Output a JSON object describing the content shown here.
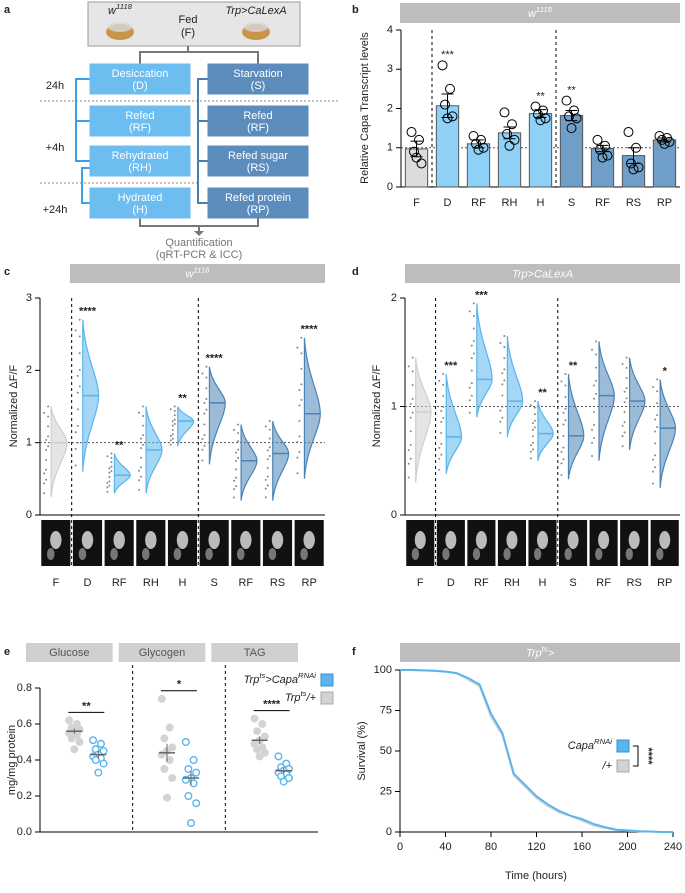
{
  "panel_labels": [
    "a",
    "b",
    "c",
    "d",
    "e",
    "f"
  ],
  "diagram": {
    "flies": [
      [
        "w",
        "1118"
      ],
      "Trp>CaLexA"
    ],
    "fed": [
      "Fed",
      "(F)"
    ],
    "left": [
      [
        "Desiccation",
        "(D)"
      ],
      [
        "Refed",
        "(RF)"
      ],
      [
        "Rehydrated",
        "(RH)"
      ],
      [
        "Hydrated",
        "(H)"
      ]
    ],
    "right": [
      [
        "Starvation",
        "(S)"
      ],
      [
        "Refed",
        "(RF)"
      ],
      [
        "Refed sugar",
        "(RS)"
      ],
      [
        "Refed protein",
        "(RP)"
      ]
    ],
    "times": [
      "24h",
      "+4h",
      "+24h"
    ],
    "output": [
      "Quantification",
      "(qRT-PCR & ICC)"
    ]
  },
  "chart_data": [
    {
      "type": "bar",
      "title": [
        "w",
        "1118"
      ],
      "y_label": "Relative Capa Transcript levels",
      "categories": [
        "F",
        "D",
        "RF",
        "RH",
        "H",
        "S",
        "RF",
        "RS",
        "RP"
      ],
      "values": [
        0.97,
        2.07,
        1.1,
        1.38,
        1.87,
        1.82,
        0.98,
        0.8,
        1.2
      ],
      "errors": [
        0.2,
        0.3,
        0.1,
        0.15,
        0.1,
        0.13,
        0.08,
        0.2,
        0.05
      ],
      "points": [
        [
          1.4,
          1.2,
          0.9,
          0.6,
          0.75
        ],
        [
          3.1,
          2.5,
          2.1,
          1.8,
          1.75
        ],
        [
          1.3,
          1.2,
          1.1,
          1.0,
          0.95
        ],
        [
          1.9,
          1.6,
          1.35,
          1.2,
          1.05
        ],
        [
          2.05,
          1.95,
          1.85,
          1.75,
          1.7
        ],
        [
          2.2,
          1.95,
          1.8,
          1.75,
          1.5
        ],
        [
          1.2,
          1.05,
          0.95,
          0.8,
          0.75
        ],
        [
          1.4,
          1.0,
          0.6,
          0.5,
          0.45
        ],
        [
          1.3,
          1.25,
          1.2,
          1.15,
          1.1
        ]
      ],
      "colors": [
        "#dcdcdc",
        "#8fd0f7",
        "#8fd0f7",
        "#8fd0f7",
        "#8fd0f7",
        "#6f9fc8",
        "#6f9fc8",
        "#6f9fc8",
        "#6f9fc8"
      ],
      "significance": [
        null,
        "***",
        null,
        null,
        "**",
        "**",
        null,
        null,
        null
      ],
      "ylim": [
        0,
        4
      ],
      "yticks": [
        0,
        1,
        2,
        3,
        4
      ],
      "reference_line": 1,
      "separators_after": [
        0,
        4
      ]
    },
    {
      "type": "violin",
      "title": [
        "w",
        "1118"
      ],
      "y_label": "Normalized ΔF/F",
      "categories": [
        "F",
        "D",
        "RF",
        "RH",
        "H",
        "S",
        "RF",
        "RS",
        "RP"
      ],
      "medians": [
        1.0,
        1.65,
        0.55,
        0.9,
        1.3,
        1.55,
        0.75,
        0.85,
        1.4
      ],
      "min": [
        0.25,
        0.6,
        0.3,
        0.3,
        0.95,
        0.7,
        0.2,
        0.2,
        0.5
      ],
      "max": [
        1.5,
        2.7,
        0.85,
        1.5,
        1.5,
        2.05,
        1.25,
        1.3,
        2.45
      ],
      "colors": [
        "#cfcfcf",
        "#5ab4ee",
        "#5ab4ee",
        "#5ab4ee",
        "#5ab4ee",
        "#4a83b5",
        "#4a83b5",
        "#4a83b5",
        "#4a83b5"
      ],
      "significance": [
        null,
        "****",
        "**",
        null,
        "**",
        "****",
        null,
        null,
        "****"
      ],
      "ylim": [
        0,
        3
      ],
      "yticks": [
        0,
        1,
        2,
        3
      ],
      "reference_line": 1,
      "separators_after": [
        0,
        4
      ]
    },
    {
      "type": "violin",
      "title": "Trp>CaLexA",
      "y_label": "Normalized ΔF/F",
      "categories": [
        "F",
        "D",
        "RF",
        "RH",
        "H",
        "S",
        "RF",
        "RS",
        "RP"
      ],
      "medians": [
        0.95,
        0.72,
        1.25,
        1.05,
        0.75,
        0.73,
        1.1,
        1.05,
        0.8
      ],
      "min": [
        0.3,
        0.38,
        0.9,
        0.72,
        0.5,
        0.33,
        0.5,
        0.6,
        0.25
      ],
      "max": [
        1.45,
        1.3,
        1.95,
        1.65,
        1.05,
        1.3,
        1.6,
        1.45,
        1.25
      ],
      "colors": [
        "#cfcfcf",
        "#5ab4ee",
        "#5ab4ee",
        "#5ab4ee",
        "#5ab4ee",
        "#4a83b5",
        "#4a83b5",
        "#4a83b5",
        "#4a83b5"
      ],
      "significance": [
        null,
        "***",
        "***",
        null,
        "**",
        "**",
        null,
        null,
        "*"
      ],
      "ylim": [
        0,
        2
      ],
      "yticks": [
        0,
        1,
        2
      ],
      "reference_line": 1,
      "separators_after": [
        0,
        4
      ]
    },
    {
      "type": "strip",
      "categories": [
        "Glucose",
        "Glycogen",
        "TAG"
      ],
      "y_label": "mg/mg protein",
      "series": [
        {
          "name": [
            "Trp",
            "ts",
            ">Capa",
            "RNAi"
          ],
          "color": "#5ab4ee",
          "points": [
            [
              0.51,
              0.49,
              0.46,
              0.45,
              0.43,
              0.42,
              0.41,
              0.4,
              0.38,
              0.33
            ],
            [
              0.5,
              0.4,
              0.35,
              0.33,
              0.3,
              0.29,
              0.27,
              0.2,
              0.16,
              0.05
            ],
            [
              0.42,
              0.38,
              0.36,
              0.35,
              0.34,
              0.33,
              0.32,
              0.31,
              0.3,
              0.28
            ]
          ],
          "means": [
            0.43,
            0.3,
            0.34
          ],
          "errors": [
            0.02,
            0.04,
            0.015
          ]
        },
        {
          "name": [
            "Trp",
            "ts",
            "/+"
          ],
          "color": "#d3d3d3",
          "points": [
            [
              0.62,
              0.6,
              0.58,
              0.57,
              0.56,
              0.55,
              0.54,
              0.52,
              0.5,
              0.46
            ],
            [
              0.74,
              0.58,
              0.52,
              0.47,
              0.45,
              0.43,
              0.4,
              0.35,
              0.3,
              0.19
            ],
            [
              0.63,
              0.6,
              0.56,
              0.53,
              0.51,
              0.49,
              0.47,
              0.46,
              0.44,
              0.42
            ]
          ],
          "means": [
            0.56,
            0.44,
            0.51
          ],
          "errors": [
            0.015,
            0.05,
            0.02
          ]
        }
      ],
      "significance": [
        "**",
        "*",
        "****"
      ],
      "ylim": [
        0,
        0.8
      ],
      "yticks": [
        {
          "value": 0,
          "label": "0.0"
        },
        0.2,
        0.4,
        0.6,
        0.8
      ]
    },
    {
      "type": "line",
      "title": [
        "Trp",
        "ts",
        ">"
      ],
      "y_label": "Survival (%)",
      "x_label": "Time (hours)",
      "x": [
        0,
        10,
        20,
        30,
        40,
        50,
        60,
        70,
        80,
        90,
        100,
        110,
        120,
        130,
        140,
        150,
        160,
        170,
        180,
        190,
        200,
        210,
        220,
        230,
        240
      ],
      "series": [
        {
          "name": [
            "Capa",
            "RNAi"
          ],
          "color": "#5ab4ee",
          "values": [
            100,
            100,
            99.8,
            99.5,
            99,
            98,
            95,
            91,
            73,
            61,
            36,
            29,
            22,
            17,
            13,
            10,
            8,
            5,
            3,
            1.5,
            1,
            0.5,
            0.3,
            0,
            0
          ]
        },
        {
          "name": "/+",
          "color": "#d3d3d3",
          "values": [
            100,
            100,
            99.8,
            99.5,
            99,
            98,
            94,
            90,
            71,
            60,
            35,
            28,
            21,
            16,
            12,
            10,
            7,
            4,
            2.5,
            1.2,
            0.8,
            0.5,
            0.2,
            0,
            0
          ]
        }
      ],
      "significance": "****",
      "xlim": [
        0,
        240
      ],
      "xticks": [
        0,
        40,
        80,
        120,
        160,
        200,
        240
      ],
      "ylim": [
        0,
        100
      ],
      "yticks": [
        0,
        25,
        50,
        75,
        100
      ]
    }
  ]
}
